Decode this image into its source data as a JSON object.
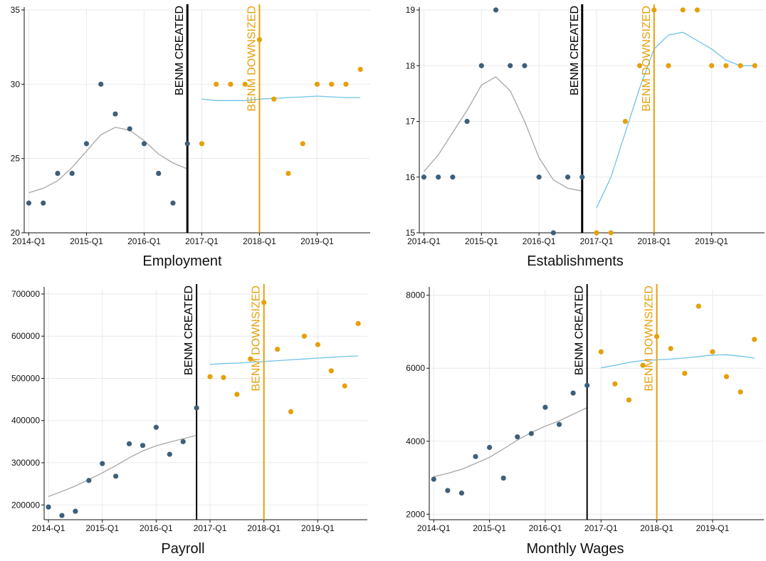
{
  "colors": {
    "pre_dot": "#3d5f7a",
    "post_dot": "#e6a00a",
    "pre_fit": "#a6a6a6",
    "post_fit": "#6ec3e8",
    "created_line": "#000000",
    "downsized_line": "#e6a00a",
    "grid": "#eaeaea",
    "axis": "#111111"
  },
  "x_tick_labels": [
    "2014-Q1",
    "2015-Q1",
    "2016-Q1",
    "2017-Q1",
    "2018-Q1",
    "2019-Q1"
  ],
  "created_label": "BENM CREATED",
  "downsized_label": "BENM DOWNSIZED",
  "chart_data": [
    {
      "type": "scatter",
      "title": "Employment",
      "xlabel": "",
      "ylabel": "",
      "ylim": [
        20,
        35
      ],
      "yticks": [
        20,
        25,
        30,
        35
      ],
      "ytick_labels": [
        "20",
        "25",
        "30",
        "35"
      ],
      "x_range": [
        0,
        23.9
      ],
      "grid": true,
      "created_at": 2016.75,
      "downsized_at": 2018.0,
      "pre": {
        "x": [
          2014.0,
          2014.25,
          2014.5,
          2014.75,
          2015.0,
          2015.25,
          2015.5,
          2015.75,
          2016.0,
          2016.25,
          2016.5,
          2016.75
        ],
        "y": [
          22,
          22,
          24,
          24,
          26,
          30,
          28,
          27,
          26,
          24,
          22,
          26
        ]
      },
      "post": {
        "x": [
          2017.0,
          2017.25,
          2017.5,
          2017.75,
          2018.0,
          2018.25,
          2018.5,
          2018.75,
          2019.0,
          2019.25,
          2019.5,
          2019.75
        ],
        "y": [
          26,
          30,
          30,
          30,
          33,
          29,
          24,
          26,
          30,
          30,
          30,
          31
        ]
      },
      "pre_fit": {
        "x": [
          2014.0,
          2014.25,
          2014.5,
          2014.75,
          2015.0,
          2015.25,
          2015.5,
          2015.75,
          2016.0,
          2016.25,
          2016.5,
          2016.75
        ],
        "y": [
          22.7,
          23.0,
          23.5,
          24.4,
          25.5,
          26.6,
          27.1,
          26.9,
          26.2,
          25.3,
          24.7,
          24.3
        ]
      },
      "post_fit": {
        "x": [
          2017.0,
          2017.25,
          2017.5,
          2017.75,
          2018.0,
          2018.25,
          2018.5,
          2018.75,
          2019.0,
          2019.25,
          2019.5,
          2019.75
        ],
        "y": [
          29.0,
          28.9,
          28.9,
          28.9,
          29.0,
          29.05,
          29.1,
          29.15,
          29.2,
          29.15,
          29.1,
          29.1
        ]
      }
    },
    {
      "type": "scatter",
      "title": "Establishments",
      "xlabel": "",
      "ylabel": "",
      "ylim": [
        15,
        19
      ],
      "yticks": [
        15,
        16,
        17,
        18,
        19
      ],
      "ytick_labels": [
        "15",
        "16",
        "17",
        "18",
        "19"
      ],
      "grid": true,
      "created_at": 2016.75,
      "downsized_at": 2018.0,
      "pre": {
        "x": [
          2014.0,
          2014.25,
          2014.5,
          2014.75,
          2015.0,
          2015.25,
          2015.5,
          2015.75,
          2016.0,
          2016.25,
          2016.5,
          2016.75
        ],
        "y": [
          16,
          16,
          16,
          17,
          18,
          19,
          18,
          18,
          16,
          15,
          16,
          16
        ]
      },
      "post": {
        "x": [
          2017.0,
          2017.25,
          2017.5,
          2017.75,
          2018.0,
          2018.25,
          2018.5,
          2018.75,
          2019.0,
          2019.25,
          2019.5,
          2019.75
        ],
        "y": [
          15,
          15,
          17,
          18,
          19,
          18,
          19,
          19,
          18,
          18,
          18,
          18
        ]
      },
      "pre_fit": {
        "x": [
          2014.0,
          2014.25,
          2014.5,
          2014.75,
          2015.0,
          2015.25,
          2015.5,
          2015.75,
          2016.0,
          2016.25,
          2016.5,
          2016.75
        ],
        "y": [
          16.1,
          16.4,
          16.8,
          17.2,
          17.65,
          17.8,
          17.55,
          17.0,
          16.35,
          15.95,
          15.8,
          15.75
        ]
      },
      "post_fit": {
        "x": [
          2017.0,
          2017.25,
          2017.5,
          2017.75,
          2018.0,
          2018.25,
          2018.5,
          2018.75,
          2019.0,
          2019.25,
          2019.5,
          2019.75
        ],
        "y": [
          15.45,
          16.0,
          16.8,
          17.6,
          18.3,
          18.55,
          18.6,
          18.45,
          18.3,
          18.1,
          18.0,
          18.0
        ]
      }
    },
    {
      "type": "scatter",
      "title": "Payroll",
      "xlabel": "",
      "ylabel": "",
      "ylim": [
        165000,
        710000
      ],
      "yticks": [
        200000,
        300000,
        400000,
        500000,
        600000,
        700000
      ],
      "ytick_labels": [
        "200000",
        "300000",
        "400000",
        "500000",
        "600000",
        "700000"
      ],
      "grid": true,
      "created_at": 2016.75,
      "downsized_at": 2018.0,
      "pre": {
        "x": [
          2014.0,
          2014.25,
          2014.5,
          2014.75,
          2015.0,
          2015.25,
          2015.5,
          2015.75,
          2016.0,
          2016.25,
          2016.5,
          2016.75
        ],
        "y": [
          195000,
          175000,
          185000,
          258000,
          298000,
          268000,
          345000,
          341000,
          384000,
          320000,
          350000,
          430000
        ]
      },
      "post": {
        "x": [
          2017.0,
          2017.25,
          2017.5,
          2017.75,
          2018.0,
          2018.25,
          2018.5,
          2018.75,
          2019.0,
          2019.25,
          2019.5,
          2019.75
        ],
        "y": [
          504000,
          502000,
          462000,
          546000,
          680000,
          569000,
          421000,
          600000,
          580000,
          518000,
          482000,
          630000
        ]
      },
      "pre_fit": {
        "x": [
          2014.0,
          2014.25,
          2014.5,
          2014.75,
          2015.0,
          2015.25,
          2015.5,
          2015.75,
          2016.0,
          2016.25,
          2016.5,
          2016.75
        ],
        "y": [
          220000,
          232000,
          245000,
          260000,
          276000,
          293000,
          312000,
          328000,
          340000,
          349000,
          357000,
          365000
        ]
      },
      "post_fit": {
        "x": [
          2017.0,
          2017.25,
          2017.5,
          2017.75,
          2018.0,
          2018.25,
          2018.5,
          2018.75,
          2019.0,
          2019.25,
          2019.5,
          2019.75
        ],
        "y": [
          533000,
          535000,
          536000,
          538000,
          540000,
          542000,
          544000,
          546000,
          548000,
          550000,
          552000,
          553000
        ]
      }
    },
    {
      "type": "scatter",
      "title": "Monthly Wages",
      "xlabel": "",
      "ylabel": "",
      "ylim": [
        1850,
        8150
      ],
      "yticks": [
        2000,
        4000,
        6000,
        8000
      ],
      "ytick_labels": [
        "2000",
        "4000",
        "6000",
        "8000"
      ],
      "grid": true,
      "created_at": 2016.75,
      "downsized_at": 2018.0,
      "pre": {
        "x": [
          2014.0,
          2014.25,
          2014.5,
          2014.75,
          2015.0,
          2015.25,
          2015.5,
          2015.75,
          2016.0,
          2016.25,
          2016.5,
          2016.75
        ],
        "y": [
          2960,
          2650,
          2580,
          3580,
          3830,
          2990,
          4120,
          4210,
          4930,
          4460,
          5320,
          5530
        ]
      },
      "post": {
        "x": [
          2017.0,
          2017.25,
          2017.5,
          2017.75,
          2018.0,
          2018.25,
          2018.5,
          2018.75,
          2019.0,
          2019.25,
          2019.5,
          2019.75
        ],
        "y": [
          6450,
          5570,
          5130,
          6080,
          6870,
          6540,
          5860,
          7700,
          6450,
          5770,
          5350,
          6790
        ]
      },
      "pre_fit": {
        "x": [
          2014.0,
          2014.25,
          2014.5,
          2014.75,
          2015.0,
          2015.25,
          2015.5,
          2015.75,
          2016.0,
          2016.25,
          2016.5,
          2016.75
        ],
        "y": [
          3030,
          3120,
          3230,
          3390,
          3560,
          3790,
          4030,
          4240,
          4410,
          4560,
          4740,
          4920
        ]
      },
      "post_fit": {
        "x": [
          2017.0,
          2017.25,
          2017.5,
          2017.75,
          2018.0,
          2018.25,
          2018.5,
          2018.75,
          2019.0,
          2019.25,
          2019.5,
          2019.75
        ],
        "y": [
          6010,
          6080,
          6160,
          6210,
          6230,
          6250,
          6280,
          6320,
          6360,
          6370,
          6330,
          6280
        ]
      }
    }
  ]
}
